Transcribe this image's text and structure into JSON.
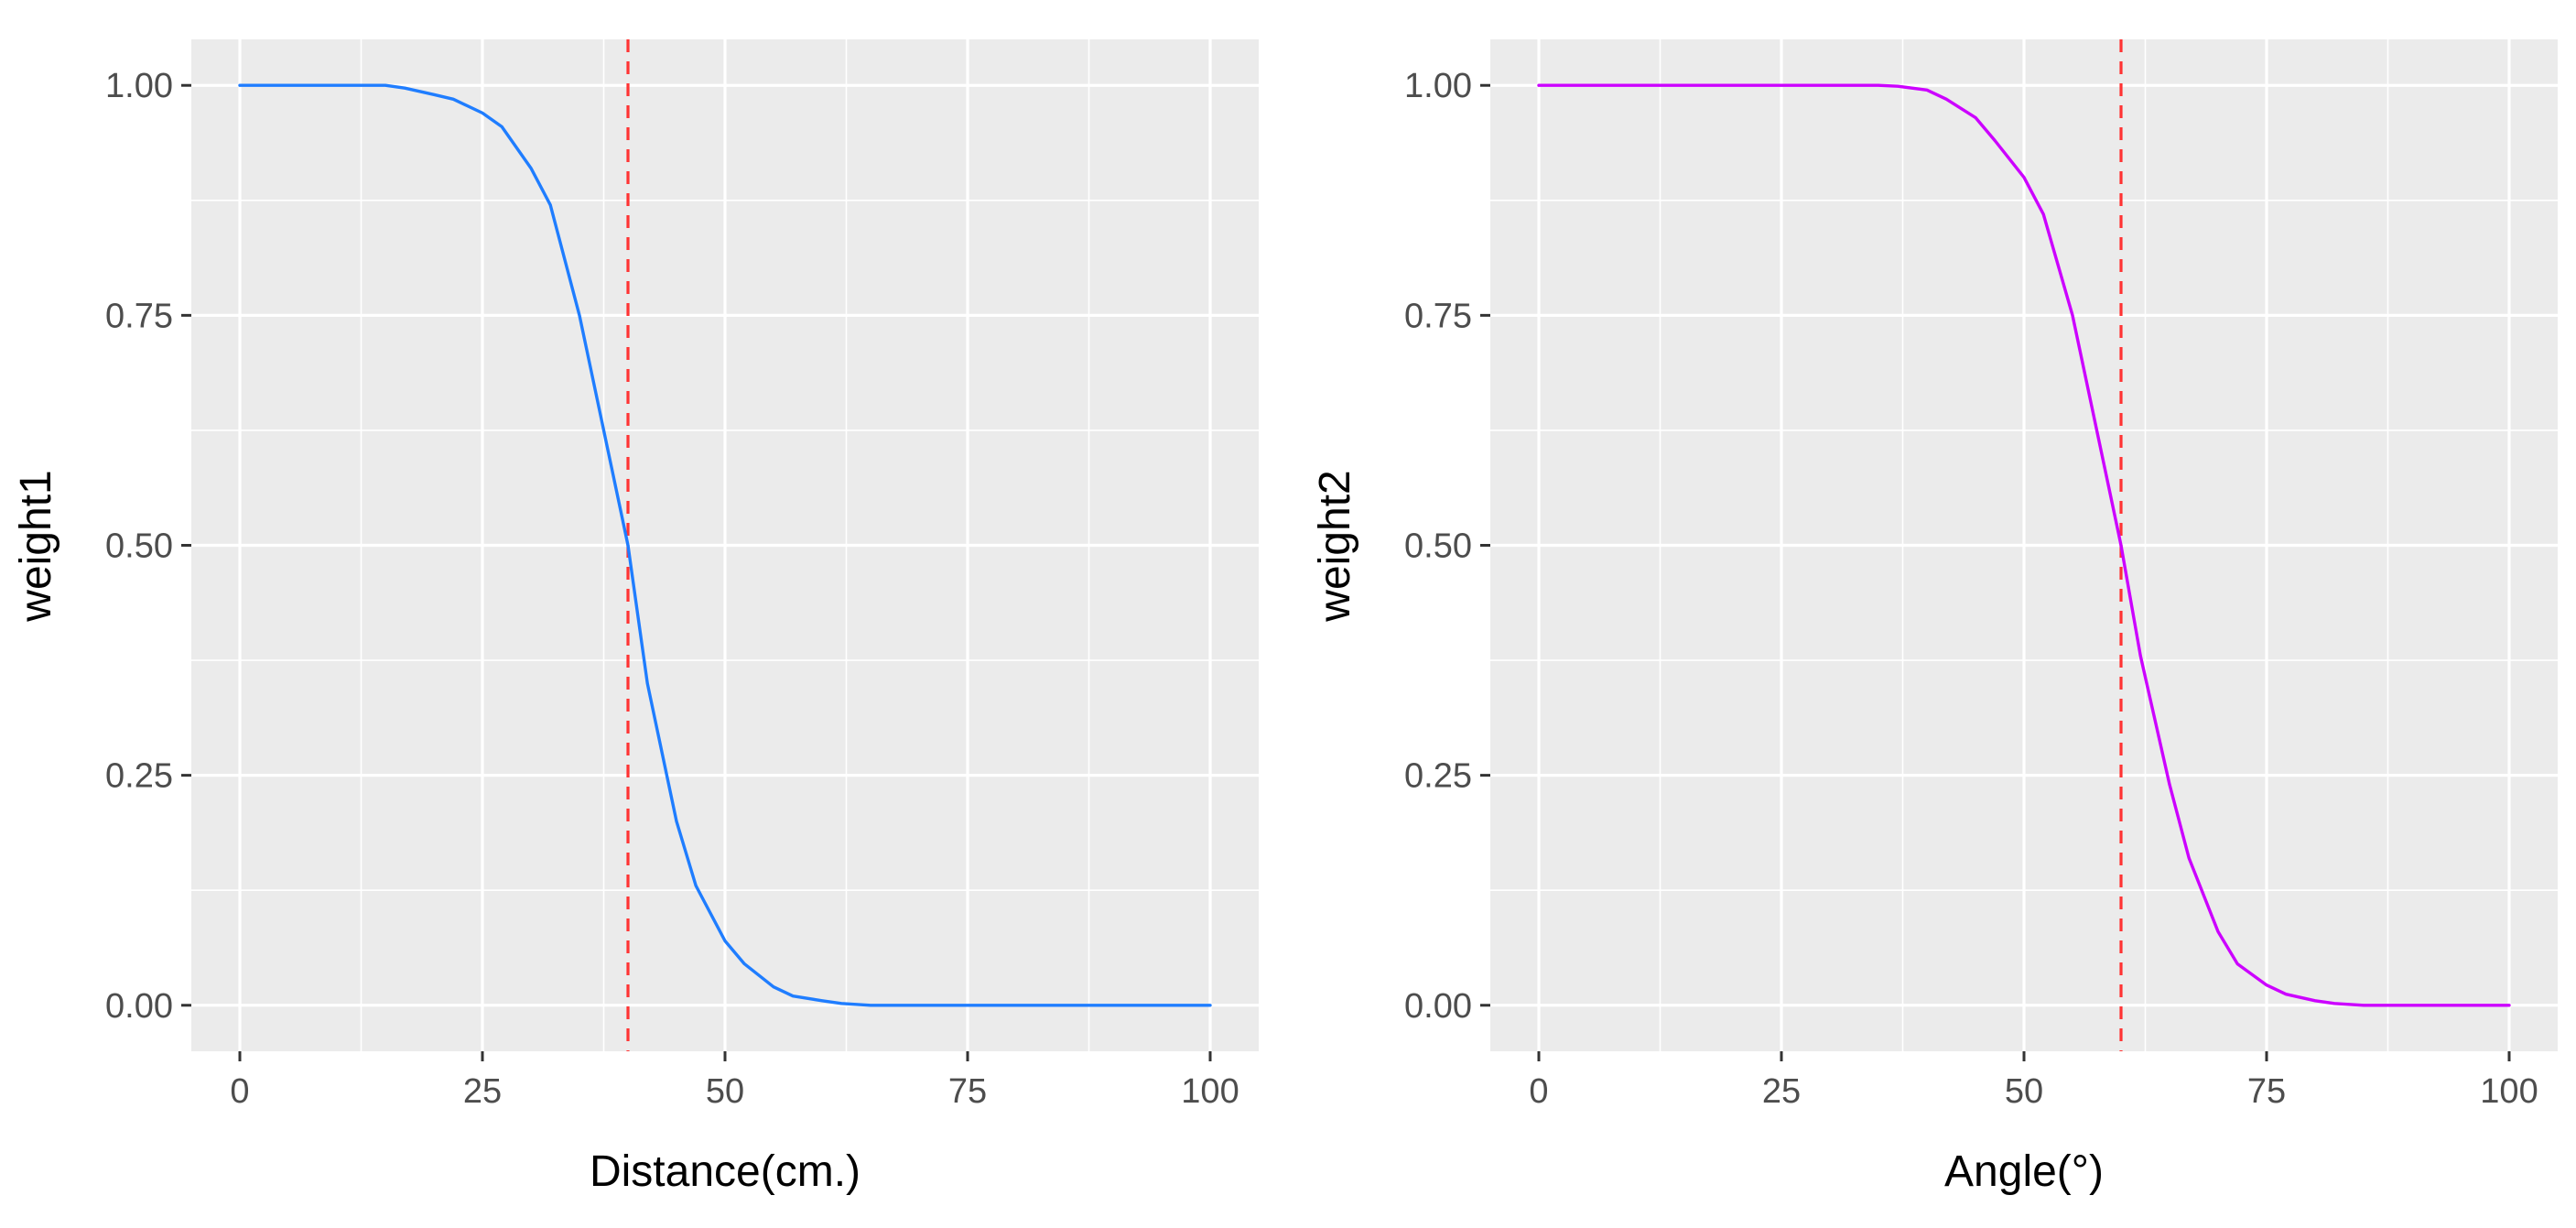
{
  "chart_data": [
    {
      "type": "line",
      "xlabel": "Distance(cm.)",
      "ylabel": "weight1",
      "xlim": [
        -5,
        105
      ],
      "ylim": [
        -0.05,
        1.05
      ],
      "x_ticks": [
        0,
        25,
        50,
        75,
        100
      ],
      "x_tick_labels": [
        "0",
        "25",
        "50",
        "75",
        "100"
      ],
      "y_ticks": [
        0,
        0.25,
        0.5,
        0.75,
        1
      ],
      "y_tick_labels": [
        "0.00",
        "0.25",
        "0.50",
        "0.75",
        "1.00"
      ],
      "grid": true,
      "panel_background": "#ebebeb",
      "line_color": "#1f7dff",
      "reference_line": {
        "x": 40,
        "color": "#ff3333",
        "style": "dashed"
      },
      "series": [
        {
          "x": [
            0,
            5,
            10,
            15,
            17,
            20,
            22,
            25,
            27,
            30,
            32,
            35,
            37,
            40,
            42,
            45,
            47,
            50,
            52,
            55,
            57,
            60,
            62,
            65,
            70,
            75,
            80,
            85,
            90,
            95,
            100
          ],
          "values": [
            1,
            1,
            1,
            1,
            0.997,
            0.99,
            0.985,
            0.97,
            0.955,
            0.91,
            0.87,
            0.75,
            0.65,
            0.5,
            0.35,
            0.2,
            0.13,
            0.07,
            0.045,
            0.02,
            0.01,
            0.005,
            0.002,
            0,
            0,
            0,
            0,
            0,
            0,
            0,
            0
          ]
        }
      ]
    },
    {
      "type": "line",
      "xlabel": "Angle(°)",
      "ylabel": "weight2",
      "xlim": [
        -5,
        105
      ],
      "ylim": [
        -0.05,
        1.05
      ],
      "x_ticks": [
        0,
        25,
        50,
        75,
        100
      ],
      "x_tick_labels": [
        "0",
        "25",
        "50",
        "75",
        "100"
      ],
      "y_ticks": [
        0,
        0.25,
        0.5,
        0.75,
        1
      ],
      "y_tick_labels": [
        "0.00",
        "0.25",
        "0.50",
        "0.75",
        "1.00"
      ],
      "grid": true,
      "panel_background": "#ebebeb",
      "line_color": "#cc00ff",
      "reference_line": {
        "x": 60,
        "color": "#ff3333",
        "style": "dashed"
      },
      "series": [
        {
          "x": [
            0,
            10,
            20,
            30,
            35,
            37,
            40,
            42,
            45,
            47,
            50,
            52,
            55,
            57,
            60,
            62,
            65,
            67,
            70,
            72,
            75,
            77,
            80,
            82,
            85,
            90,
            95,
            100
          ],
          "values": [
            1,
            1,
            1,
            1,
            1,
            0.999,
            0.995,
            0.985,
            0.965,
            0.94,
            0.9,
            0.86,
            0.75,
            0.65,
            0.5,
            0.38,
            0.24,
            0.16,
            0.08,
            0.045,
            0.022,
            0.012,
            0.005,
            0.002,
            0,
            0,
            0,
            0
          ]
        }
      ]
    }
  ]
}
